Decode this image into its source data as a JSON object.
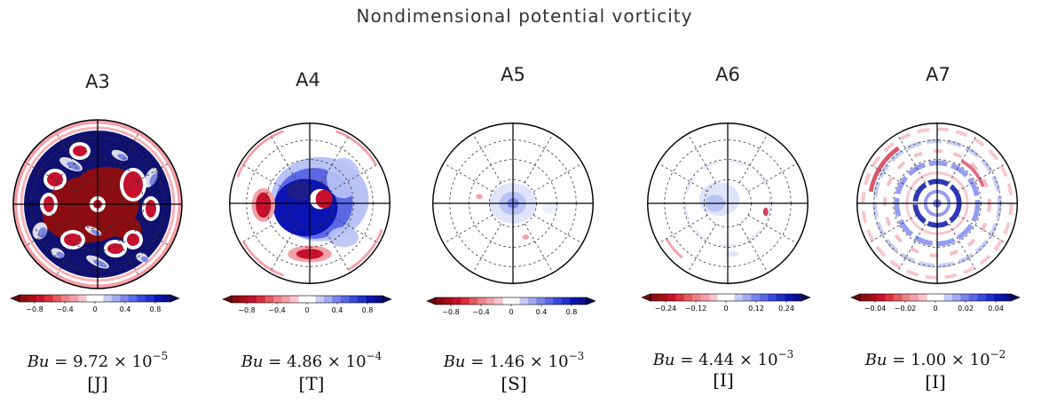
{
  "figure": {
    "title": "Nondimensional potential vorticity"
  },
  "colors": {
    "negative": "#c8102e",
    "positive": "#0a14b4",
    "neutral": "#ffffff"
  },
  "chart_data": [
    {
      "type": "heatmap",
      "title": "A3",
      "projection": "polar",
      "bu": {
        "label": "Bu",
        "mantissa": "9.72",
        "exponent": "−5"
      },
      "regime": "[J]",
      "colorbar": {
        "ticks": [
          "−0.8",
          "−0.4",
          "0",
          "0.4",
          "0.8"
        ],
        "range": [
          -1,
          1
        ],
        "extend": "both"
      }
    },
    {
      "type": "heatmap",
      "title": "A4",
      "projection": "polar",
      "bu": {
        "label": "Bu",
        "mantissa": "4.86",
        "exponent": "−4"
      },
      "regime": "[T]",
      "colorbar": {
        "ticks": [
          "−0.8",
          "−0.4",
          "0",
          "0.4",
          "0.8"
        ],
        "range": [
          -1,
          1
        ],
        "extend": "both"
      }
    },
    {
      "type": "heatmap",
      "title": "A5",
      "projection": "polar",
      "bu": {
        "label": "Bu",
        "mantissa": "1.46",
        "exponent": "−3"
      },
      "regime": "[S]",
      "colorbar": {
        "ticks": [
          "−0.8",
          "−0.4",
          "0",
          "0.4",
          "0.8"
        ],
        "range": [
          -1,
          1
        ],
        "extend": "both"
      }
    },
    {
      "type": "heatmap",
      "title": "A6",
      "projection": "polar",
      "bu": {
        "label": "Bu",
        "mantissa": "4.44",
        "exponent": "−3"
      },
      "regime": "[I]",
      "colorbar": {
        "ticks": [
          "−0.24",
          "−0.12",
          "0",
          "0.12",
          "0.24"
        ],
        "range": [
          -0.3,
          0.3
        ],
        "extend": "both"
      }
    },
    {
      "type": "heatmap",
      "title": "A7",
      "projection": "polar",
      "bu": {
        "label": "Bu",
        "mantissa": "1.00",
        "exponent": "−2"
      },
      "regime": "[I]",
      "colorbar": {
        "ticks": [
          "−0.04",
          "−0.02",
          "0",
          "0.02",
          "0.04"
        ],
        "range": [
          -0.05,
          0.05
        ],
        "extend": "both"
      }
    }
  ]
}
